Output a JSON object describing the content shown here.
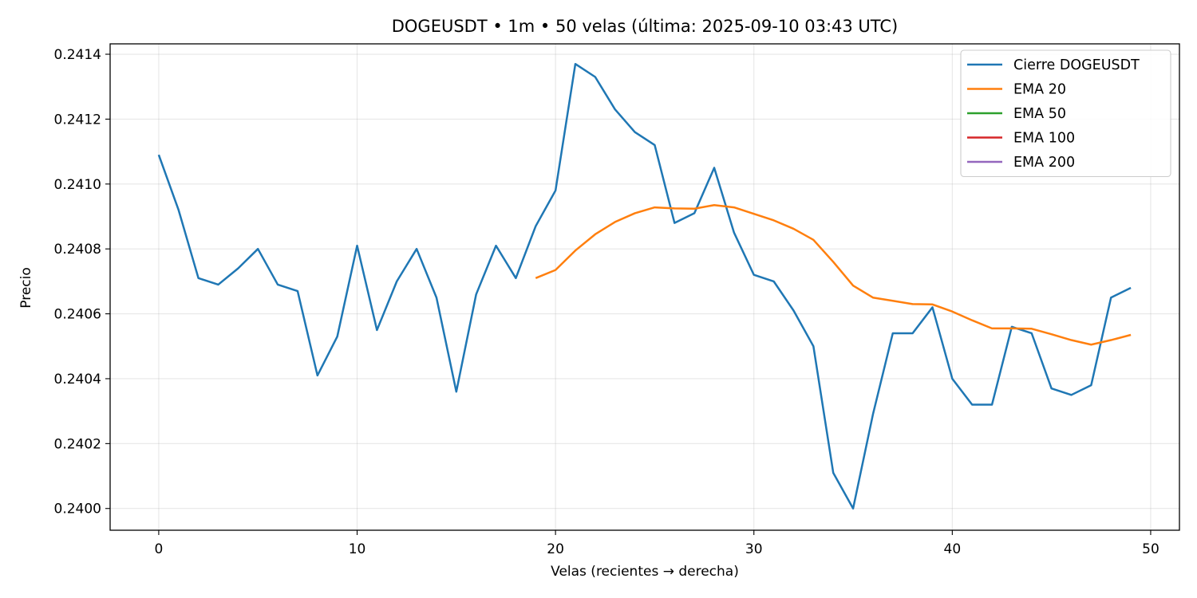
{
  "chart_data": {
    "type": "line",
    "title": "DOGEUSDT • 1m • 50 velas  (última: 2025-09-10 03:43 UTC)",
    "xlabel": "Velas (recientes → derecha)",
    "ylabel": "Precio",
    "xlim": [
      -2.45,
      51.45
    ],
    "ylim": [
      0.239933,
      0.241432
    ],
    "xticks": [
      0,
      10,
      20,
      30,
      40,
      50
    ],
    "yticks": [
      0.24,
      0.2402,
      0.2404,
      0.2406,
      0.2408,
      0.241,
      0.2412,
      0.2414
    ],
    "ytick_labels": [
      "0.2400",
      "0.2402",
      "0.2404",
      "0.2406",
      "0.2408",
      "0.2410",
      "0.2412",
      "0.2414"
    ],
    "grid": true,
    "legend_position": "top-right",
    "series": [
      {
        "name": "Cierre DOGEUSDT",
        "color": "#1f77b4",
        "x_start": 0,
        "values": [
          0.24109,
          0.24092,
          0.24071,
          0.24069,
          0.24074,
          0.2408,
          0.24069,
          0.24067,
          0.24041,
          0.24053,
          0.24081,
          0.24055,
          0.2407,
          0.2408,
          0.24065,
          0.24036,
          0.24066,
          0.24081,
          0.24071,
          0.24087,
          0.24098,
          0.24137,
          0.24133,
          0.24123,
          0.24116,
          0.24112,
          0.24088,
          0.24091,
          0.24105,
          0.24085,
          0.24072,
          0.2407,
          0.24061,
          0.2405,
          0.24011,
          0.24,
          0.24029,
          0.24054,
          0.24054,
          0.24062,
          0.2404,
          0.24032,
          0.24032,
          0.24056,
          0.24054,
          0.24037,
          0.24035,
          0.24038,
          0.24065,
          0.24068
        ]
      },
      {
        "name": "EMA 20",
        "color": "#ff7f0e",
        "x_start": 19,
        "values": [
          0.24071,
          0.240735,
          0.240795,
          0.240845,
          0.240883,
          0.24091,
          0.240928,
          0.240925,
          0.240924,
          0.240935,
          0.240928,
          0.240908,
          0.240888,
          0.240862,
          0.240828,
          0.24076,
          0.240687,
          0.24065,
          0.24064,
          0.24063,
          0.240629,
          0.240607,
          0.24058,
          0.240555,
          0.240555,
          0.240554,
          0.240537,
          0.240519,
          0.240505,
          0.240519,
          0.240535
        ]
      },
      {
        "name": "EMA 50",
        "color": "#2ca02c",
        "x_start": 0,
        "values": []
      },
      {
        "name": "EMA 100",
        "color": "#d62728",
        "x_start": 0,
        "values": []
      },
      {
        "name": "EMA 200",
        "color": "#9467bd",
        "x_start": 0,
        "values": []
      }
    ]
  }
}
